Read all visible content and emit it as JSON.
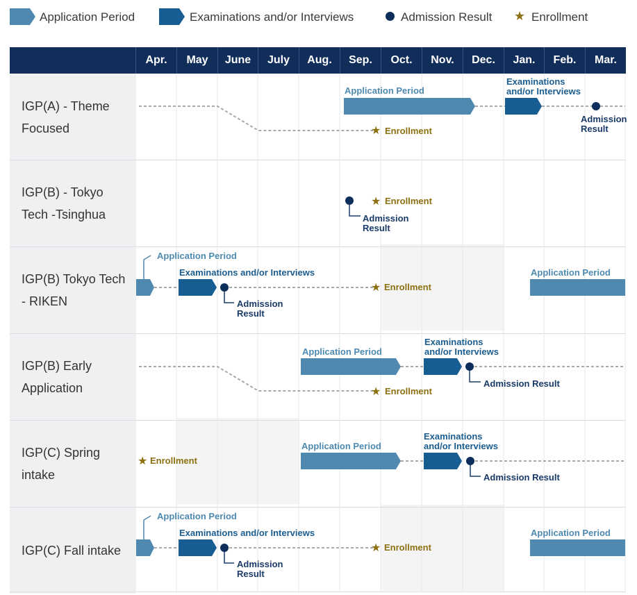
{
  "legend": {
    "application": "Application Period",
    "exam": "Examinations and/or Interviews",
    "result": "Admission Result",
    "enrollment": "Enrollment"
  },
  "months": [
    "Apr.",
    "May",
    "June",
    "July",
    "Aug.",
    "Sep.",
    "Oct.",
    "Nov.",
    "Dec.",
    "Jan.",
    "Feb.",
    "Mar."
  ],
  "programs": [
    {
      "label": "IGP(A) - Theme Focused"
    },
    {
      "label": "IGP(B) - Tokyo Tech -Tsinghua"
    },
    {
      "label": "IGP(B) Tokyo Tech - RIKEN"
    },
    {
      "label": "IGP(B) Early Application"
    },
    {
      "label": "IGP(C) Spring intake"
    },
    {
      "label": "IGP(C) Fall intake"
    }
  ],
  "annotations": {
    "application_period": "Application Period",
    "exam_line1": "Examinations",
    "exam_line2": "and/or Interviews",
    "exam_oneline": "Examinations and/or Interviews",
    "result_line1": "Admission",
    "result_line2": "Result",
    "result_oneline": "Admission Result",
    "enrollment": "Enrollment"
  },
  "colors": {
    "header": "#112e5b",
    "application": "#4f89b0",
    "exam": "#165d92",
    "result": "#0d2d5a",
    "enrollment": "#8c7011"
  }
}
